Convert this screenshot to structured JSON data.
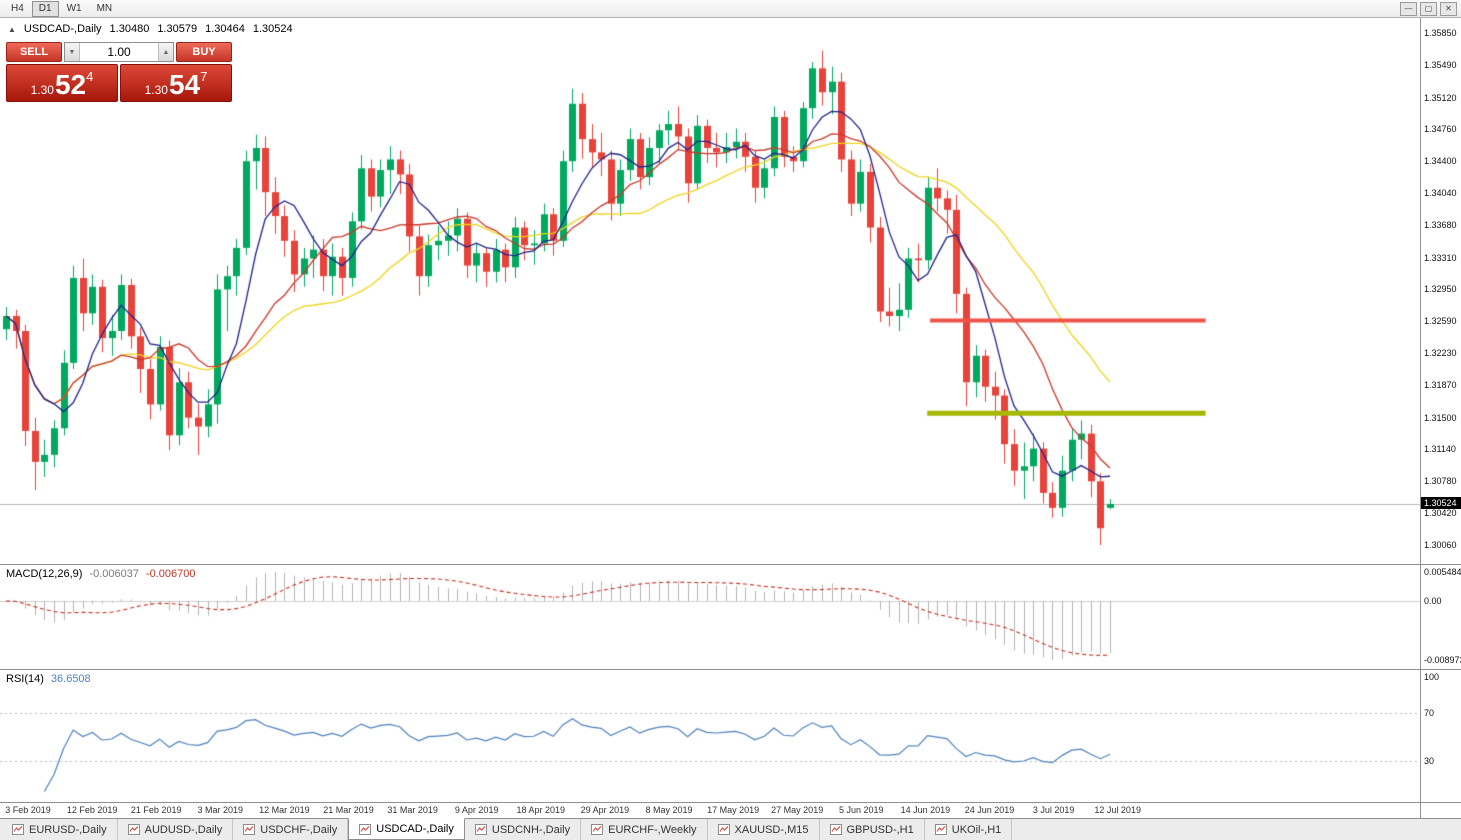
{
  "window": {
    "period_buttons": [
      "H4",
      "D1",
      "W1",
      "MN"
    ],
    "active_period": "D1",
    "controls": [
      "—",
      "▢",
      "✕"
    ]
  },
  "chart": {
    "symbol_title": "USDCAD-,Daily",
    "ohlc": {
      "open": "1.30480",
      "high": "1.30579",
      "low": "1.30464",
      "close": "1.30524"
    },
    "current_price": "1.30524"
  },
  "trade_panel": {
    "sell_label": "SELL",
    "buy_label": "BUY",
    "volume": "1.00",
    "sell_price": {
      "base": "1.30",
      "pips": "52",
      "pipette": "4"
    },
    "buy_price": {
      "base": "1.30",
      "pips": "54",
      "pipette": "7"
    }
  },
  "indicators": {
    "macd": {
      "label": "MACD(12,26,9)",
      "value_main": "-0.006037",
      "value_signal": "-0.006700",
      "axis": [
        "0.005484",
        "0.00",
        "-0.008973"
      ]
    },
    "rsi": {
      "label": "RSI(14)",
      "value": "36.6508",
      "axis": [
        "100",
        "70",
        "30"
      ]
    }
  },
  "tabs": [
    {
      "label": "EURUSD-,Daily",
      "active": false
    },
    {
      "label": "AUDUSD-,Daily",
      "active": false
    },
    {
      "label": "USDCHF-,Daily",
      "active": false
    },
    {
      "label": "USDCAD-,Daily",
      "active": true
    },
    {
      "label": "USDCNH-,Daily",
      "active": false
    },
    {
      "label": "EURCHF-,Weekly",
      "active": false
    },
    {
      "label": "XAUUSD-,M15",
      "active": false
    },
    {
      "label": "GBPUSD-,H1",
      "active": false
    },
    {
      "label": "UKOil-,H1",
      "active": false
    }
  ],
  "chart_data": {
    "type": "candlestick",
    "symbol": "USDCAD",
    "timeframe": "Daily",
    "price_max": 1.3585,
    "price_min": 1.3006,
    "price_axis_ticks": [
      "1.35850",
      "1.35490",
      "1.35120",
      "1.34760",
      "1.34400",
      "1.34040",
      "1.33680",
      "1.33310",
      "1.32950",
      "1.32590",
      "1.32230",
      "1.31870",
      "1.31500",
      "1.31140",
      "1.30780",
      "1.30420",
      "1.30060"
    ],
    "x_labels": [
      "3 Feb 2019",
      "12 Feb 2019",
      "21 Feb 2019",
      "3 Mar 2019",
      "12 Mar 2019",
      "21 Mar 2019",
      "31 Mar 2019",
      "9 Apr 2019",
      "18 Apr 2019",
      "29 Apr 2019",
      "8 May 2019",
      "17 May 2019",
      "27 May 2019",
      "5 Jun 2019",
      "14 Jun 2019",
      "24 Jun 2019",
      "3 Jul 2019",
      "12 Jul 2019"
    ],
    "colors": {
      "up": "#00a95f",
      "down": "#e8433a",
      "bid_line": "#b9b9b9"
    },
    "bid_line": 1.30524,
    "candles": [
      [
        1.325,
        1.3275,
        1.3238,
        1.3265
      ],
      [
        1.3265,
        1.3272,
        1.3228,
        1.3248
      ],
      [
        1.3248,
        1.3255,
        1.3118,
        1.3135
      ],
      [
        1.3135,
        1.315,
        1.3068,
        1.31
      ],
      [
        1.31,
        1.3125,
        1.3083,
        1.3108
      ],
      [
        1.3108,
        1.3147,
        1.3094,
        1.3138
      ],
      [
        1.3138,
        1.3226,
        1.313,
        1.3212
      ],
      [
        1.3212,
        1.3322,
        1.3205,
        1.3308
      ],
      [
        1.3308,
        1.333,
        1.3248,
        1.3268
      ],
      [
        1.3268,
        1.3312,
        1.3255,
        1.3298
      ],
      [
        1.3298,
        1.3306,
        1.3224,
        1.324
      ],
      [
        1.324,
        1.3266,
        1.322,
        1.3248
      ],
      [
        1.3248,
        1.3312,
        1.3238,
        1.33
      ],
      [
        1.33,
        1.3307,
        1.3228,
        1.3242
      ],
      [
        1.3242,
        1.3252,
        1.3178,
        1.3205
      ],
      [
        1.3205,
        1.3216,
        1.3148,
        1.3165
      ],
      [
        1.3165,
        1.3242,
        1.3158,
        1.323
      ],
      [
        1.323,
        1.3237,
        1.3113,
        1.313
      ],
      [
        1.313,
        1.3206,
        1.3119,
        1.319
      ],
      [
        1.319,
        1.3202,
        1.3138,
        1.315
      ],
      [
        1.315,
        1.3166,
        1.3108,
        1.314
      ],
      [
        1.314,
        1.3182,
        1.3128,
        1.3165
      ],
      [
        1.3165,
        1.3312,
        1.3143,
        1.3295
      ],
      [
        1.3295,
        1.3322,
        1.3248,
        1.331
      ],
      [
        1.331,
        1.3352,
        1.3288,
        1.3342
      ],
      [
        1.3342,
        1.3452,
        1.3334,
        1.344
      ],
      [
        1.344,
        1.347,
        1.3408,
        1.3455
      ],
      [
        1.3455,
        1.3468,
        1.3378,
        1.3405
      ],
      [
        1.3405,
        1.3422,
        1.3358,
        1.3378
      ],
      [
        1.3378,
        1.339,
        1.3332,
        1.335
      ],
      [
        1.335,
        1.3362,
        1.3292,
        1.3312
      ],
      [
        1.3312,
        1.3342,
        1.3298,
        1.333
      ],
      [
        1.333,
        1.3356,
        1.3308,
        1.334
      ],
      [
        1.334,
        1.3352,
        1.3293,
        1.331
      ],
      [
        1.331,
        1.3347,
        1.3288,
        1.3332
      ],
      [
        1.3332,
        1.3342,
        1.3288,
        1.3308
      ],
      [
        1.3308,
        1.3382,
        1.3298,
        1.3372
      ],
      [
        1.3372,
        1.3447,
        1.3363,
        1.3432
      ],
      [
        1.3432,
        1.3442,
        1.3383,
        1.34
      ],
      [
        1.34,
        1.3442,
        1.3388,
        1.343
      ],
      [
        1.343,
        1.3457,
        1.3403,
        1.3442
      ],
      [
        1.3442,
        1.3452,
        1.3403,
        1.3425
      ],
      [
        1.3425,
        1.3437,
        1.3338,
        1.3355
      ],
      [
        1.3355,
        1.3367,
        1.3288,
        1.331
      ],
      [
        1.331,
        1.3357,
        1.3298,
        1.3345
      ],
      [
        1.3345,
        1.3367,
        1.3328,
        1.335
      ],
      [
        1.335,
        1.3372,
        1.3333,
        1.3356
      ],
      [
        1.3356,
        1.3387,
        1.3338,
        1.3375
      ],
      [
        1.3375,
        1.3382,
        1.3308,
        1.3322
      ],
      [
        1.3322,
        1.3347,
        1.3303,
        1.3336
      ],
      [
        1.3336,
        1.3342,
        1.3298,
        1.3315
      ],
      [
        1.3315,
        1.3352,
        1.3303,
        1.334
      ],
      [
        1.334,
        1.3347,
        1.3303,
        1.332
      ],
      [
        1.332,
        1.3377,
        1.3308,
        1.3365
      ],
      [
        1.3365,
        1.3372,
        1.3328,
        1.3345
      ],
      [
        1.3345,
        1.3362,
        1.3323,
        1.3347
      ],
      [
        1.3347,
        1.3392,
        1.3338,
        1.338
      ],
      [
        1.338,
        1.3387,
        1.3333,
        1.335
      ],
      [
        1.335,
        1.3452,
        1.3343,
        1.344
      ],
      [
        1.344,
        1.3522,
        1.3428,
        1.3505
      ],
      [
        1.3505,
        1.3517,
        1.3443,
        1.3465
      ],
      [
        1.3465,
        1.3482,
        1.3433,
        1.345
      ],
      [
        1.345,
        1.3472,
        1.3423,
        1.3442
      ],
      [
        1.3442,
        1.3452,
        1.3373,
        1.3392
      ],
      [
        1.3392,
        1.3442,
        1.3378,
        1.343
      ],
      [
        1.343,
        1.3477,
        1.3418,
        1.3465
      ],
      [
        1.3465,
        1.3472,
        1.3408,
        1.3422
      ],
      [
        1.3422,
        1.3467,
        1.3413,
        1.3455
      ],
      [
        1.3455,
        1.3482,
        1.3438,
        1.3475
      ],
      [
        1.3475,
        1.3497,
        1.3458,
        1.3482
      ],
      [
        1.3482,
        1.3502,
        1.3453,
        1.3468
      ],
      [
        1.3468,
        1.3477,
        1.3393,
        1.3415
      ],
      [
        1.3415,
        1.3492,
        1.3408,
        1.348
      ],
      [
        1.348,
        1.3487,
        1.3438,
        1.3455
      ],
      [
        1.3455,
        1.3472,
        1.3433,
        1.345
      ],
      [
        1.345,
        1.3472,
        1.3438,
        1.3456
      ],
      [
        1.3456,
        1.3477,
        1.3443,
        1.3462
      ],
      [
        1.3462,
        1.3472,
        1.3428,
        1.3445
      ],
      [
        1.3445,
        1.3452,
        1.3393,
        1.341
      ],
      [
        1.341,
        1.3442,
        1.3398,
        1.3432
      ],
      [
        1.3432,
        1.3502,
        1.3423,
        1.349
      ],
      [
        1.349,
        1.3497,
        1.3433,
        1.3445
      ],
      [
        1.3445,
        1.3457,
        1.3428,
        1.344
      ],
      [
        1.344,
        1.3507,
        1.3433,
        1.35
      ],
      [
        1.35,
        1.3552,
        1.3488,
        1.3545
      ],
      [
        1.3545,
        1.3565,
        1.3503,
        1.3518
      ],
      [
        1.3518,
        1.3547,
        1.3493,
        1.353
      ],
      [
        1.353,
        1.354,
        1.3428,
        1.3442
      ],
      [
        1.3442,
        1.3452,
        1.3378,
        1.3392
      ],
      [
        1.3392,
        1.3442,
        1.3383,
        1.3428
      ],
      [
        1.3428,
        1.3437,
        1.3348,
        1.3365
      ],
      [
        1.3365,
        1.3377,
        1.3258,
        1.327
      ],
      [
        1.327,
        1.3297,
        1.3253,
        1.3265
      ],
      [
        1.3265,
        1.3302,
        1.3248,
        1.3272
      ],
      [
        1.3272,
        1.3342,
        1.3263,
        1.333
      ],
      [
        1.333,
        1.3347,
        1.3303,
        1.3328
      ],
      [
        1.3328,
        1.3422,
        1.3318,
        1.341
      ],
      [
        1.341,
        1.3432,
        1.3383,
        1.3398
      ],
      [
        1.3398,
        1.3407,
        1.3358,
        1.3385
      ],
      [
        1.3385,
        1.3402,
        1.3268,
        1.329
      ],
      [
        1.329,
        1.3297,
        1.3163,
        1.319
      ],
      [
        1.319,
        1.3232,
        1.3173,
        1.322
      ],
      [
        1.322,
        1.3227,
        1.3168,
        1.3185
      ],
      [
        1.3185,
        1.3202,
        1.3148,
        1.3175
      ],
      [
        1.3175,
        1.3182,
        1.3098,
        1.312
      ],
      [
        1.312,
        1.3137,
        1.3073,
        1.309
      ],
      [
        1.309,
        1.3122,
        1.3058,
        1.3095
      ],
      [
        1.3095,
        1.3132,
        1.3078,
        1.3115
      ],
      [
        1.3115,
        1.3122,
        1.3053,
        1.3065
      ],
      [
        1.3065,
        1.3077,
        1.3037,
        1.3048
      ],
      [
        1.3048,
        1.3107,
        1.3038,
        1.309
      ],
      [
        1.309,
        1.3137,
        1.3078,
        1.3125
      ],
      [
        1.3125,
        1.3147,
        1.3103,
        1.3132
      ],
      [
        1.3132,
        1.3142,
        1.306,
        1.3078
      ],
      [
        1.3078,
        1.3087,
        1.3006,
        1.3025
      ],
      [
        1.3048,
        1.30579,
        1.30464,
        1.30524
      ]
    ],
    "moving_averages": [
      {
        "period": 6,
        "color": "#20248c",
        "name": "ma-fast-blue"
      },
      {
        "period": 13,
        "color": "#cc382a",
        "name": "ma-medium-red"
      },
      {
        "period": 25,
        "color": "#f2d41c",
        "name": "ma-slow-yellow"
      }
    ],
    "hlines": [
      {
        "price": 1.326,
        "color": "#f05348",
        "width": 4,
        "x1_frac": 0.655,
        "x2_frac": 0.849
      },
      {
        "price": 1.3155,
        "color": "#a4b804",
        "width": 5,
        "x1_frac": 0.653,
        "x2_frac": 0.849
      }
    ],
    "macd": {
      "fast": 12,
      "slow": 26,
      "signal": 9,
      "hist_color": "#b3b3b3",
      "signal_color": "#cc2e22"
    },
    "rsi": {
      "period": 14,
      "color": "#4f81bd",
      "levels": [
        70,
        30
      ]
    }
  }
}
